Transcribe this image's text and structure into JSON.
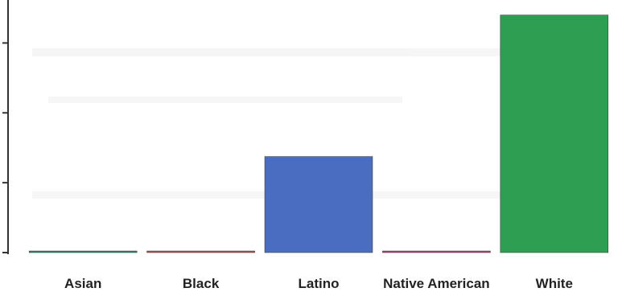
{
  "chart_data": {
    "type": "bar",
    "categories": [
      "Asian",
      "Black",
      "Latino",
      "Native American",
      "White"
    ],
    "values": [
      0.1,
      0.1,
      27.5,
      0.1,
      68
    ],
    "colors": [
      "#2e8b6f",
      "#c0504d",
      "#4a6cc1",
      "#c23b78",
      "#2e9e52"
    ],
    "ylim": [
      0,
      70
    ],
    "y_ticks": [
      0,
      20,
      40,
      60
    ],
    "y_tick_labels_visible": false,
    "grid": false,
    "legend": "none",
    "title": "",
    "xlabel": "",
    "ylabel": ""
  }
}
